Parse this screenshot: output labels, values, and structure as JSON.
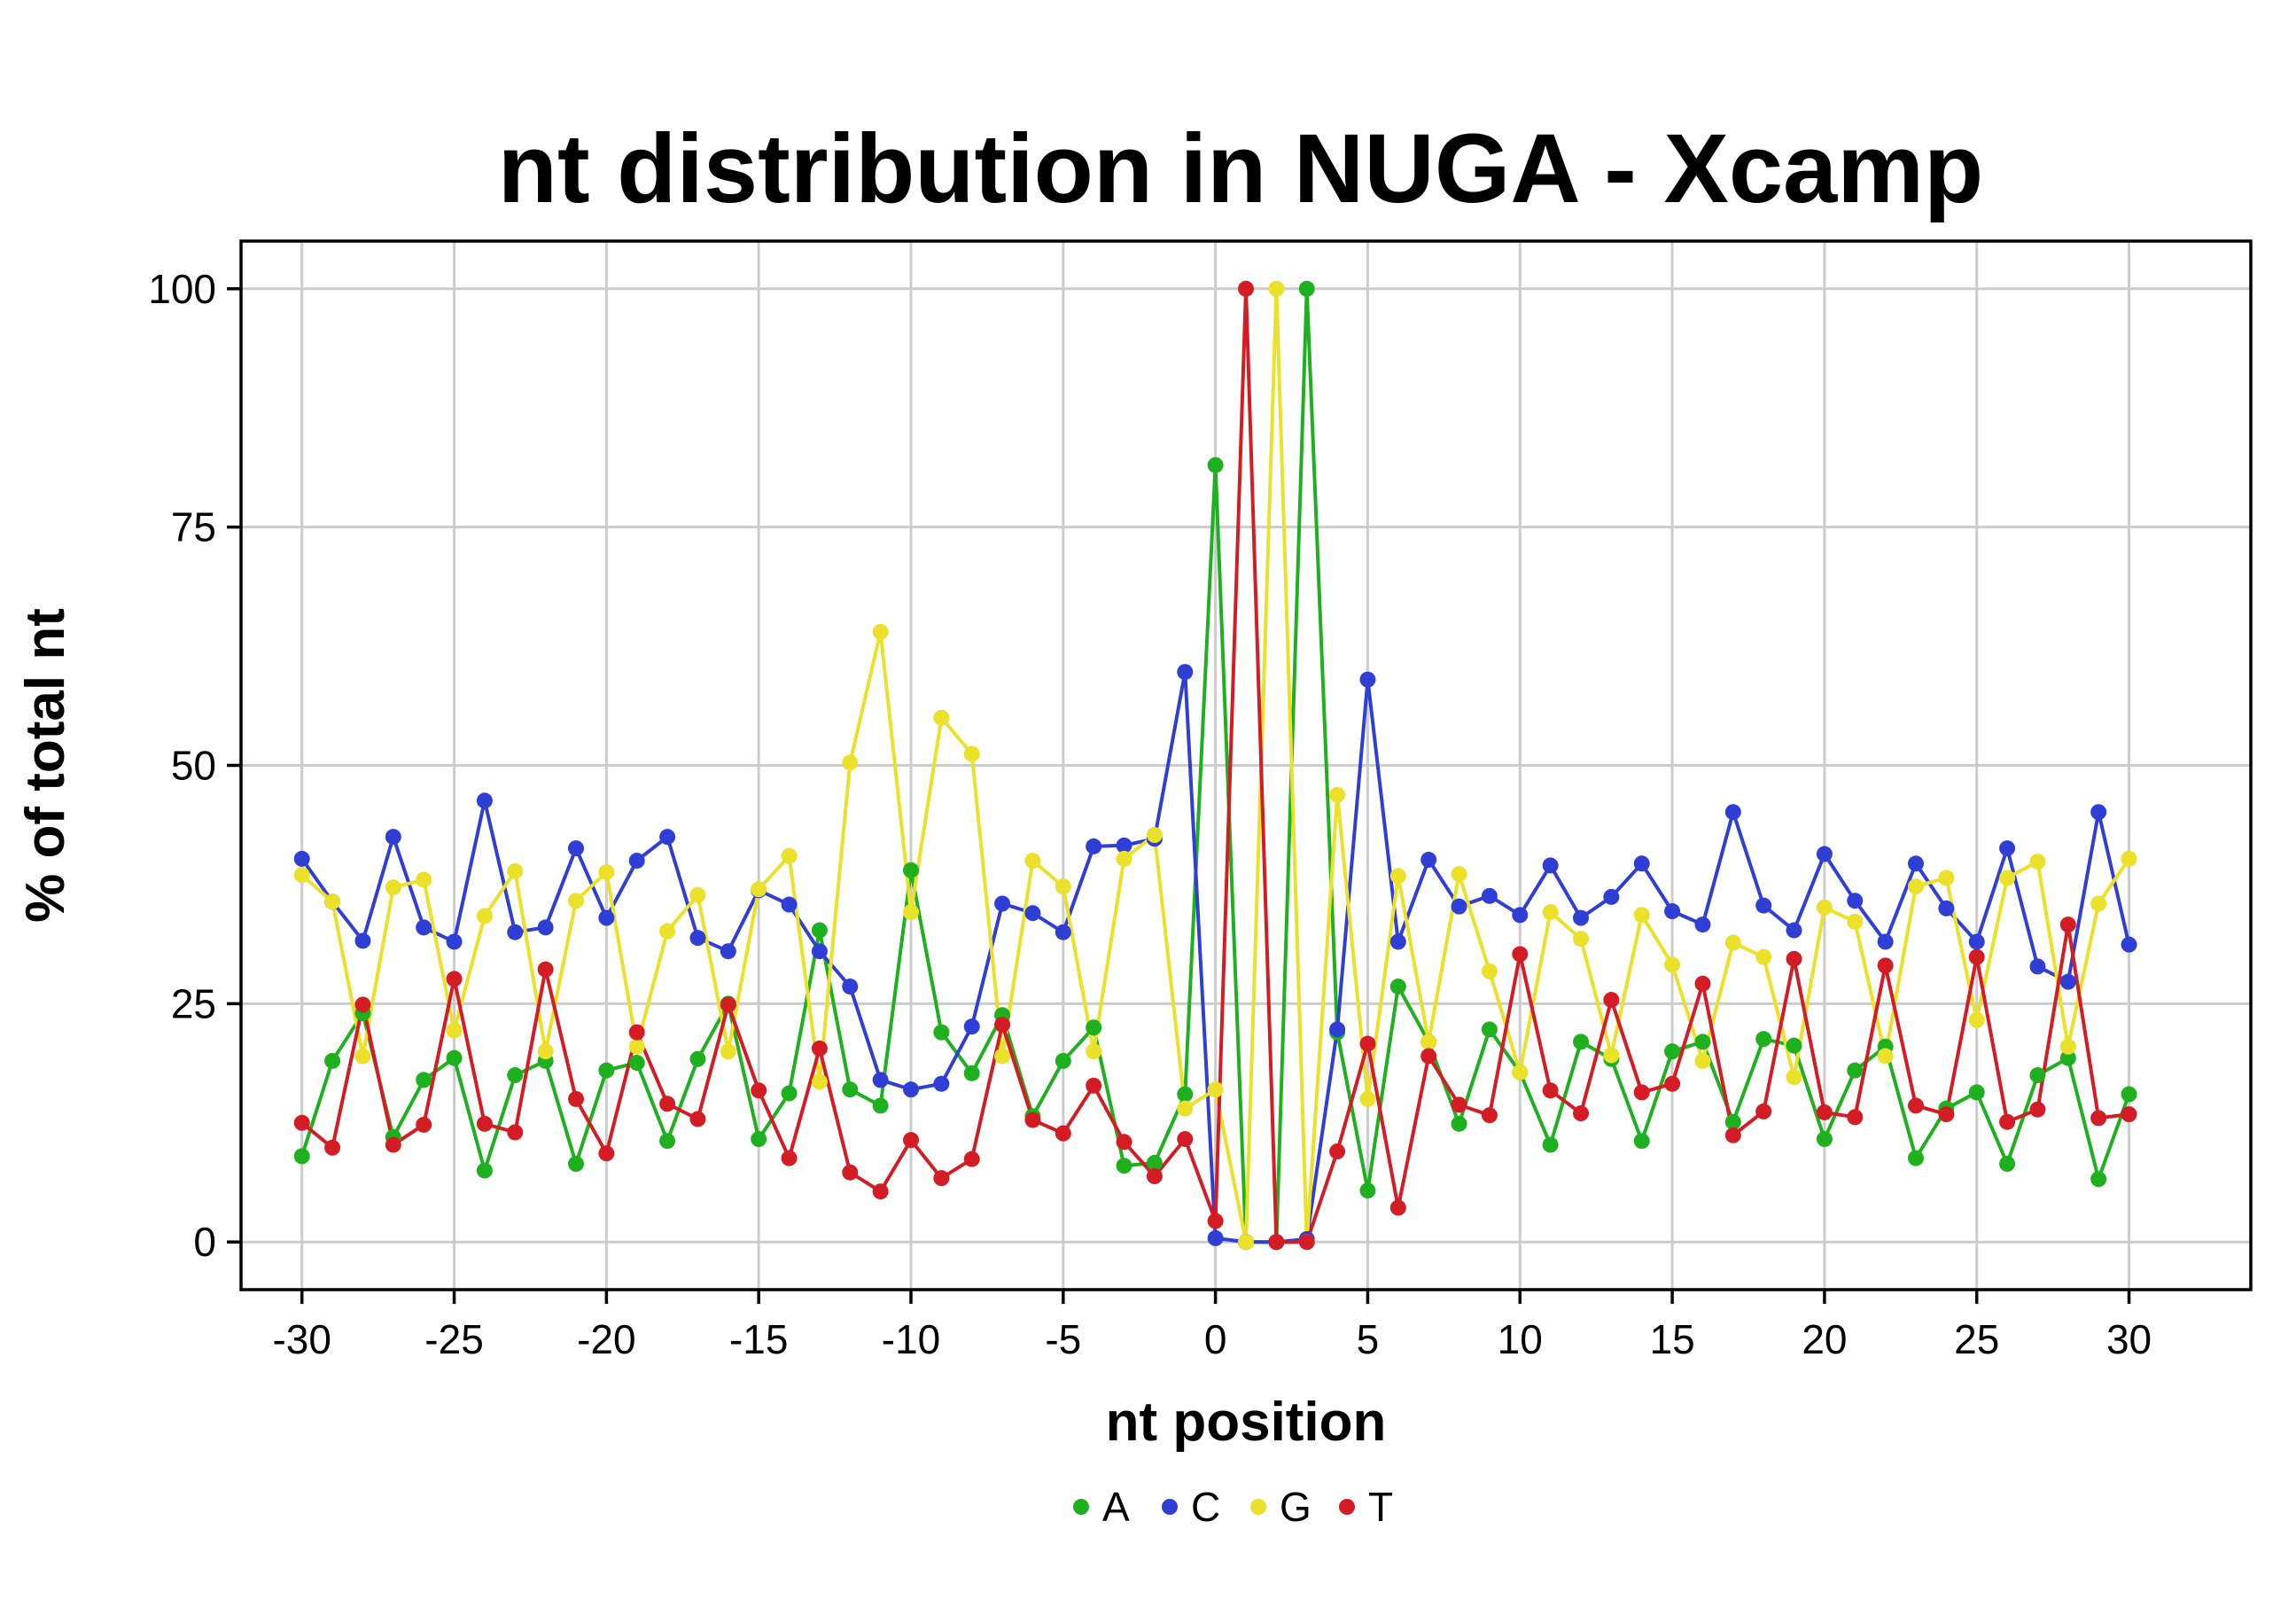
{
  "chart_data": {
    "type": "line",
    "title": "nt distribution in NUGA - Xcamp",
    "xlabel": "nt position",
    "ylabel": "% of total nt",
    "xlim": [
      -32,
      34
    ],
    "ylim": [
      -5,
      105
    ],
    "xticks": [
      -30,
      -25,
      -20,
      -15,
      -10,
      -5,
      0,
      5,
      10,
      15,
      20,
      25,
      30
    ],
    "xtick_labels": [
      "-30",
      "-25",
      "-20",
      "-15",
      "-10",
      "-5",
      "0",
      "5",
      "10",
      "15",
      "20",
      "25",
      "30"
    ],
    "yticks": [
      0,
      25,
      50,
      75,
      100
    ],
    "ytick_labels": [
      "0",
      "25",
      "50",
      "75",
      "100"
    ],
    "grid": true,
    "legend_position": "bottom",
    "x": [
      -30,
      -29,
      -28,
      -27,
      -26,
      -25,
      -24,
      -23,
      -22,
      -21,
      -20,
      -19,
      -18,
      -17,
      -16,
      -15,
      -14,
      -13,
      -12,
      -11,
      -10,
      -9,
      -8,
      -7,
      -6,
      -5,
      -4,
      -3,
      -2,
      -1,
      0,
      1,
      2,
      3,
      4,
      5,
      6,
      7,
      8,
      9,
      10,
      11,
      12,
      13,
      14,
      15,
      16,
      17,
      18,
      19,
      20,
      21,
      22,
      23,
      24,
      25,
      26,
      27,
      28,
      29,
      30
    ],
    "series": [
      {
        "name": "A",
        "color": "#1fb01f",
        "values": [
          9,
          19,
          24,
          11,
          17,
          19.3,
          7.5,
          17.5,
          19,
          8.2,
          18,
          18.8,
          10.6,
          19.2,
          25,
          10.8,
          15.6,
          32.7,
          16,
          14.3,
          39,
          22,
          17.7,
          23.8,
          13.2,
          19,
          22.5,
          8,
          8.3,
          15.5,
          81.5,
          0,
          0,
          100,
          22,
          5.4,
          26.8,
          21,
          12.4,
          22.3,
          17.8,
          10.2,
          21,
          19.2,
          10.6,
          20,
          21,
          12.6,
          21.3,
          20.6,
          10.8,
          18,
          20.5,
          8.8,
          14,
          15.7,
          8.2,
          17.5,
          19.3,
          6.6,
          15.5
        ]
      },
      {
        "name": "C",
        "color": "#2f3fd6",
        "values": [
          40.2,
          35.7,
          31.6,
          42.5,
          33,
          31.5,
          46.3,
          32.5,
          33,
          41.3,
          34,
          40,
          42.5,
          31.9,
          30.5,
          36.9,
          35.4,
          30.5,
          26.8,
          17,
          16,
          16.6,
          22.6,
          35.5,
          34.5,
          32.5,
          41.5,
          41.6,
          42.3,
          59.8,
          0.4,
          0,
          0,
          0.3,
          22.3,
          59,
          31.5,
          40.1,
          35.2,
          36.3,
          34.3,
          39.5,
          34,
          36.2,
          39.7,
          34.7,
          33.3,
          45.1,
          35.3,
          32.7,
          40.7,
          35.8,
          31.5,
          39.7,
          35,
          31.5,
          41.3,
          28.9,
          27.3,
          45.1,
          31.2
        ]
      },
      {
        "name": "G",
        "color": "#ebe02a",
        "values": [
          38.5,
          35.7,
          19.5,
          37.2,
          38,
          22.2,
          34.2,
          38.9,
          20,
          35.8,
          38.8,
          20.5,
          32.6,
          36.4,
          20,
          37,
          40.5,
          16.8,
          50.3,
          64,
          34.6,
          55,
          51.2,
          19.5,
          40,
          37.3,
          20,
          40.2,
          42.7,
          14,
          16,
          0,
          100,
          0,
          46.9,
          15,
          38.4,
          21,
          38.6,
          28.4,
          17.8,
          34.6,
          31.8,
          19.6,
          34.3,
          29.1,
          19,
          31.4,
          29.9,
          17.3,
          35.1,
          33.6,
          19.5,
          37.3,
          38.2,
          23.3,
          38.2,
          39.9,
          20.5,
          35.5,
          40.2
        ]
      },
      {
        "name": "T",
        "color": "#d41c24",
        "values": [
          12.5,
          9.9,
          24.9,
          10.2,
          12.3,
          27.6,
          12.4,
          11.5,
          28.6,
          15,
          9.3,
          22,
          14.5,
          12.9,
          24.9,
          15.9,
          8.8,
          20.3,
          7.3,
          5.3,
          10.7,
          6.7,
          8.7,
          22.8,
          12.8,
          11.4,
          16.4,
          10.5,
          6.9,
          10.8,
          2.2,
          100,
          0,
          0,
          9.5,
          20.8,
          3.6,
          19.5,
          14.4,
          13.3,
          30.2,
          15.9,
          13.5,
          25.4,
          15.7,
          16.6,
          27.1,
          11.2,
          13.7,
          29.7,
          13.6,
          13.1,
          29,
          14.3,
          13.4,
          29.9,
          12.6,
          13.9,
          33.3,
          13,
          13.4
        ]
      }
    ]
  }
}
